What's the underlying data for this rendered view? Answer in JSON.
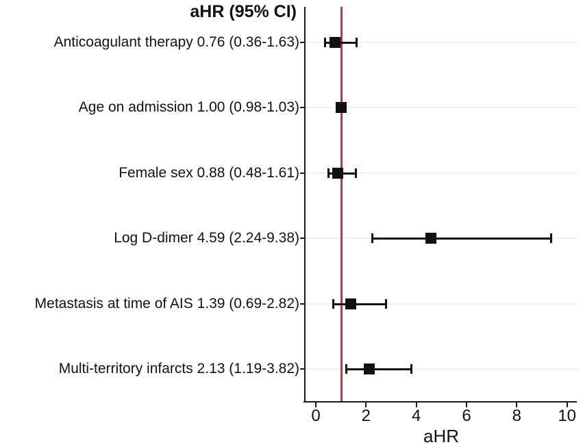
{
  "chart_data": {
    "type": "forest",
    "title": "aHR (95% CI)",
    "xlabel": "aHR",
    "xlim": [
      0,
      10
    ],
    "x_ticks": [
      0,
      2,
      4,
      6,
      8,
      10
    ],
    "reference_line_x": 1,
    "grid": true,
    "rows": [
      {
        "label": "Anticoagulant therapy 0.76 (0.36-1.63)",
        "name": "Anticoagulant therapy",
        "estimate": 0.76,
        "ci_low": 0.36,
        "ci_high": 1.63
      },
      {
        "label": "Age on admission 1.00 (0.98-1.03)",
        "name": "Age on admission",
        "estimate": 1.0,
        "ci_low": 0.98,
        "ci_high": 1.03
      },
      {
        "label": "Female sex 0.88 (0.48-1.61)",
        "name": "Female sex",
        "estimate": 0.88,
        "ci_low": 0.48,
        "ci_high": 1.61
      },
      {
        "label": "Log D-dimer 4.59 (2.24-9.38)",
        "name": "Log D-dimer",
        "estimate": 4.59,
        "ci_low": 2.24,
        "ci_high": 9.38
      },
      {
        "label": "Metastasis at time of AIS 1.39 (0.69-2.82)",
        "name": "Metastasis at time of AIS",
        "estimate": 1.39,
        "ci_low": 0.69,
        "ci_high": 2.82
      },
      {
        "label": "Multi-territory infarcts 2.13 (1.19-3.82)",
        "name": "Multi-territory infarcts",
        "estimate": 2.13,
        "ci_low": 1.19,
        "ci_high": 3.82
      }
    ],
    "colors": {
      "reference_line": "#cc3232",
      "marker": "#111111",
      "gridline": "#f0f0f0",
      "axis": "#1a1a1a"
    }
  }
}
